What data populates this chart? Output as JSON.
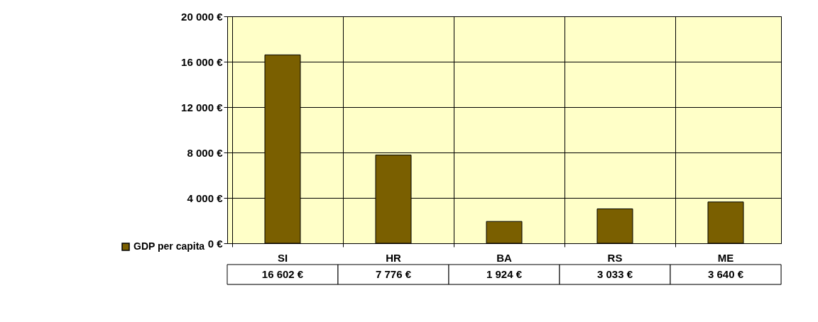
{
  "chart_data": {
    "type": "bar",
    "categories": [
      "SI",
      "HR",
      "BA",
      "RS",
      "ME"
    ],
    "series": [
      {
        "name": "GDP per capita",
        "color": "#7a5f00",
        "values": [
          16602,
          7776,
          1924,
          3033,
          3640
        ],
        "value_labels": [
          "16 602 €",
          "7 776 €",
          "1 924 €",
          "3 033 €",
          "3 640 €"
        ]
      }
    ],
    "ylim": [
      0,
      20000
    ],
    "yticks": [
      {
        "value": 0,
        "label": "0 €"
      },
      {
        "value": 4000,
        "label": "4 000 €"
      },
      {
        "value": 8000,
        "label": "8 000 €"
      },
      {
        "value": 12000,
        "label": "12 000 €"
      },
      {
        "value": 16000,
        "label": "16 000 €"
      },
      {
        "value": 20000,
        "label": "20 000 €"
      }
    ],
    "grid": true,
    "legend": "bottom left"
  }
}
